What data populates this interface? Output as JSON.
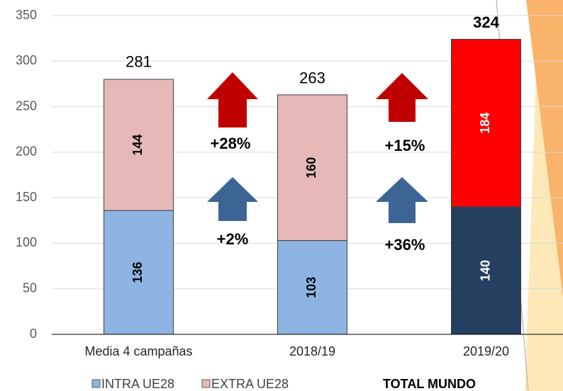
{
  "chart_data": {
    "type": "stacked_bar",
    "categories": [
      "Media 4 campañas",
      "2018/19",
      "2019/20"
    ],
    "series": [
      {
        "name": "INTRA UE28",
        "color": "#8eb4e3",
        "point_colors": [
          "#8eb4e3",
          "#8eb4e3",
          "#243f60"
        ],
        "values": [
          136,
          103,
          140
        ]
      },
      {
        "name": "EXTRA UE28",
        "color": "#e6b9b8",
        "point_colors": [
          "#e6b9b8",
          "#e6b9b8",
          "#ff0000"
        ],
        "values": [
          144,
          160,
          184
        ]
      }
    ],
    "totals": [
      281,
      263,
      324
    ],
    "totals_name": "TOTAL MUNDO",
    "annotations": [
      {
        "text": "+28%",
        "color": "#c00000"
      },
      {
        "text": "+2%",
        "color": "#3c6595"
      },
      {
        "text": "+15%",
        "color": "#c00000"
      },
      {
        "text": "+36%",
        "color": "#3c6595"
      }
    ],
    "ylim": [
      0,
      350
    ],
    "yticks": [
      0,
      50,
      100,
      150,
      200,
      250,
      300,
      350
    ],
    "grid": true
  }
}
